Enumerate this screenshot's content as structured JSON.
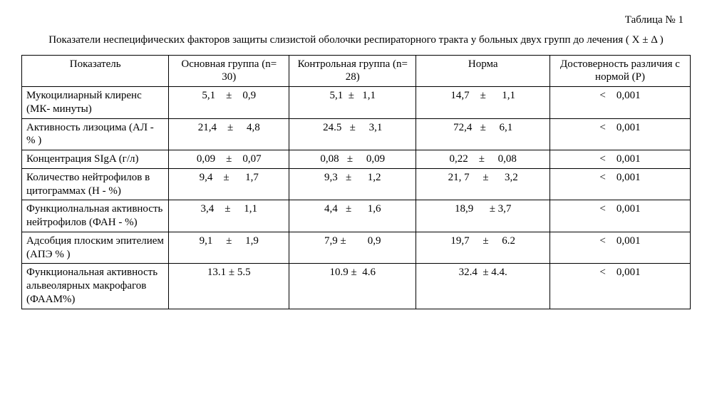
{
  "table_label": "Таблица № 1",
  "caption": "Показатели неспецифических факторов защиты слизистой оболочки респираторного тракта у больных двух групп до лечения  ( X ± Δ )",
  "columns": [
    "Показатель",
    "Основная группа (n= 30)",
    "Контрольная группа (n= 28)",
    "Норма",
    "Достоверность различия с нормой (Р)"
  ],
  "rows": [
    {
      "indicator": "Мукоцилиарный клиренс (МК- минуты)",
      "main": "5,1    ±    0,9",
      "control": "5,1  ±   1,1",
      "norm": "14,7    ±      1,1",
      "p": "<    0,001"
    },
    {
      "indicator": "Активность лизоцима (АЛ - % )",
      "main": "21,4    ±     4,8",
      "control": "24.5   ±     3,1",
      "norm": "72,4   ±     6,1",
      "p": "<    0,001"
    },
    {
      "indicator": "Концентрация SIgA (г/л)",
      "main": "0,09    ±    0,07",
      "control": "0,08   ±     0,09",
      "norm": "0,22    ±     0,08",
      "p": "<    0,001"
    },
    {
      "indicator": "Количество нейтрофилов в цитограммах (Н - %)",
      "main": "9,4    ±      1,7",
      "control": "9,3   ±      1,2",
      "norm": "21, 7     ±      3,2",
      "p": "<    0,001"
    },
    {
      "indicator": "Функциолнальная активность нейтрофилов (ФАН - %)",
      "main": "3,4    ±     1,1",
      "control": "4,4   ±      1,6",
      "norm": "18,9      ± 3,7",
      "p": "<    0,001"
    },
    {
      "indicator": "Адсобция плоским эпителием (АПЭ % )",
      "main": "9,1     ±     1,9",
      "control": "7,9 ±        0,9",
      "norm": "19,7     ±     6.2",
      "p": "<    0,001"
    },
    {
      "indicator": "Функциональная активность альвеолярных макрофагов (ФААМ%)",
      "main": "13.1 ± 5.5",
      "control": "10.9 ±  4.6",
      "norm": "32.4  ± 4.4.",
      "p": "<    0,001"
    }
  ],
  "style": {
    "font_family": "Times New Roman",
    "font_size_pt": 11,
    "border_color": "#000000",
    "background_color": "#ffffff",
    "text_color": "#000000",
    "col_widths_pct": [
      22,
      18,
      19,
      20,
      21
    ]
  }
}
